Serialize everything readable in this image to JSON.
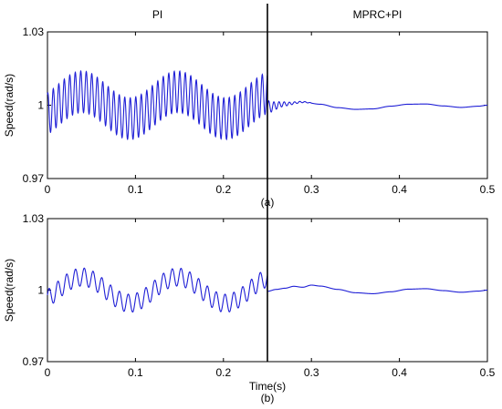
{
  "chart_data": [
    {
      "id": "a",
      "type": "line",
      "ylabel": "Speed(rad/s)",
      "xlabel": "",
      "panel_label": "(a)",
      "xlim": [
        0,
        0.5
      ],
      "ylim": [
        0.97,
        1.03
      ],
      "xticks": [
        0,
        0.1,
        0.2,
        0.3,
        0.4,
        0.5
      ],
      "xtick_labels": [
        "0",
        "0.1",
        "0.2",
        "0.3",
        "0.4",
        "0.5"
      ],
      "yticks": [
        0.97,
        1,
        1.03
      ],
      "ytick_labels": [
        "0.97",
        "1",
        "1.03"
      ],
      "annotations": [
        {
          "text": "PI",
          "x": 0.125
        },
        {
          "text": "MPRC+PI",
          "x": 0.375
        }
      ],
      "divider_x": 0.25,
      "series": [
        {
          "color": "#1f1fd6",
          "segments": [
            {
              "x0": 0,
              "x1": 0.25,
              "kind": "oscillation",
              "base": 1,
              "slow_amp": 0.0055,
              "slow_freq": 9.2,
              "slow_phase": -0.7,
              "fast_amp": 0.0085,
              "fast_freq": 160,
              "fast_phase": 1.2
            },
            {
              "x0": 0.25,
              "x1": 0.3,
              "kind": "decay",
              "base": 1.0003,
              "fast_amp": 0.0028,
              "fast_freq": 170,
              "decay": 60
            },
            {
              "x0": 0.25,
              "x1": 0.5,
              "kind": "settle",
              "points": [
                [
                  0.25,
                  0.9992
                ],
                [
                  0.27,
                  1.0005
                ],
                [
                  0.29,
                  1.0013
                ],
                [
                  0.31,
                  1.0004
                ],
                [
                  0.33,
                  0.999
                ],
                [
                  0.35,
                  0.9983
                ],
                [
                  0.37,
                  0.9985
                ],
                [
                  0.39,
                  0.9996
                ],
                [
                  0.41,
                  1.0004
                ],
                [
                  0.43,
                  1.0005
                ],
                [
                  0.45,
                  0.9997
                ],
                [
                  0.47,
                  0.9991
                ],
                [
                  0.49,
                  0.9996
                ],
                [
                  0.5,
                  1.0
                ]
              ]
            }
          ]
        }
      ]
    },
    {
      "id": "b",
      "type": "line",
      "ylabel": "Speed(rad/s)",
      "xlabel": "Time(s)",
      "panel_label": "(b)",
      "xlim": [
        0,
        0.5
      ],
      "ylim": [
        0.97,
        1.03
      ],
      "xticks": [
        0,
        0.1,
        0.2,
        0.3,
        0.4,
        0.5
      ],
      "xtick_labels": [
        "0",
        "0.1",
        "0.2",
        "0.3",
        "0.4",
        "0.5"
      ],
      "yticks": [
        0.97,
        1,
        1.03
      ],
      "ytick_labels": [
        "0.97",
        "1",
        "1.03"
      ],
      "divider_x": 0.25,
      "series": [
        {
          "color": "#1f1fd6",
          "segments": [
            {
              "x0": 0,
              "x1": 0.25,
              "kind": "oscillation",
              "base": 1,
              "slow_amp": 0.0055,
              "slow_freq": 9.2,
              "slow_phase": -0.7,
              "fast_amp": 0.0038,
              "fast_freq": 100,
              "fast_phase": 0.4
            },
            {
              "x0": 0.25,
              "x1": 0.5,
              "kind": "settle",
              "points": [
                [
                  0.25,
                  0.9995
                ],
                [
                  0.26,
                  1.0003
                ],
                [
                  0.27,
                  1.0008
                ],
                [
                  0.28,
                  1.0016
                ],
                [
                  0.29,
                  1.0012
                ],
                [
                  0.3,
                  1.0021
                ],
                [
                  0.31,
                  1.0017
                ],
                [
                  0.33,
                  1.0003
                ],
                [
                  0.35,
                  0.9989
                ],
                [
                  0.37,
                  0.9985
                ],
                [
                  0.39,
                  0.9993
                ],
                [
                  0.41,
                  1.0004
                ],
                [
                  0.43,
                  1.0006
                ],
                [
                  0.45,
                  0.9998
                ],
                [
                  0.47,
                  0.9991
                ],
                [
                  0.49,
                  0.9996
                ],
                [
                  0.5,
                  1.0
                ]
              ]
            }
          ]
        }
      ]
    }
  ]
}
